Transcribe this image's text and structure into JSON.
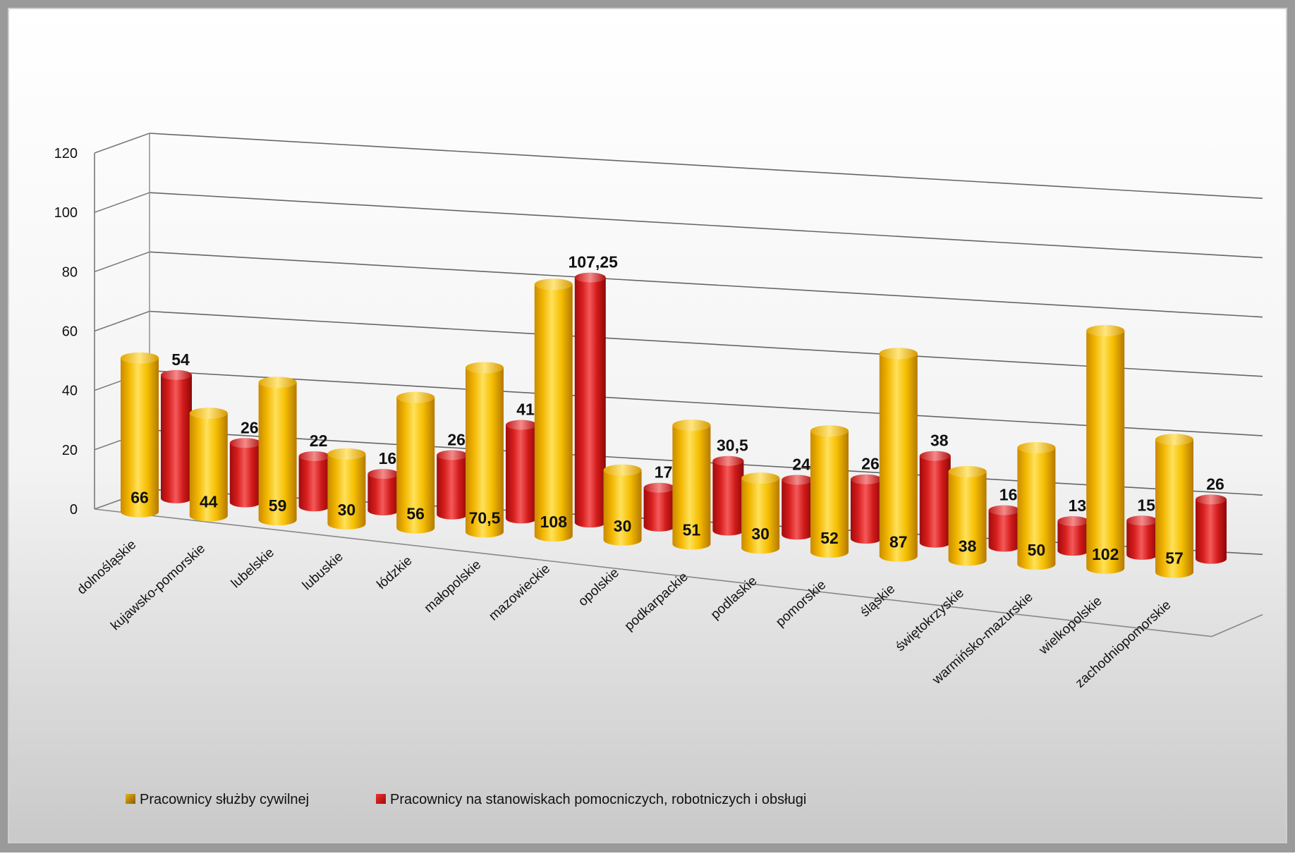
{
  "chart_data": {
    "type": "bar",
    "title": "",
    "xlabel": "",
    "ylabel": "",
    "ylim": [
      0,
      120
    ],
    "yticks": [
      "0",
      "20",
      "40",
      "60",
      "80",
      "100",
      "120"
    ],
    "grid": true,
    "legend_position": "bottom-left",
    "categories": [
      "dolnośląskie",
      "kujawsko-pomorskie",
      "lubelskie",
      "lubuskie",
      "łódzkie",
      "małopolskie",
      "mazowieckie",
      "opolskie",
      "podkarpackie",
      "podlaskie",
      "pomorskie",
      "śląskie",
      "świętokrzyskie",
      "warmińsko-mazurskie",
      "wielkopolskie",
      "zachodniopomorskie"
    ],
    "series": [
      {
        "name": "Pracownicy służby cywilnej",
        "color": "#F5B800",
        "values": [
          66,
          44,
          59,
          30,
          56,
          70.5,
          108,
          30,
          51,
          30,
          52,
          87,
          38,
          50,
          102,
          57
        ],
        "labels": [
          "66",
          "44",
          "59",
          "30",
          "56",
          "70,5",
          "108",
          "30",
          "51",
          "30",
          "52",
          "87",
          "38",
          "50",
          "102",
          "57"
        ]
      },
      {
        "name": "Pracownicy na stanowiskach pomocniczych, robotniczych i obsługi",
        "color": "#D81E1E",
        "values": [
          54,
          26,
          22,
          16,
          26,
          41,
          107.25,
          17,
          30.5,
          24,
          26,
          38,
          16,
          13,
          15,
          26
        ],
        "labels": [
          "54",
          "26",
          "22",
          "16",
          "26",
          "41",
          "107,25",
          "17",
          "30,5",
          "24",
          "26",
          "38",
          "16",
          "13",
          "15",
          "26"
        ]
      }
    ]
  }
}
